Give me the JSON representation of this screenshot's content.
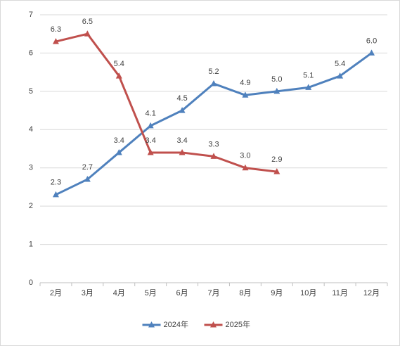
{
  "chart_data": {
    "type": "line",
    "categories": [
      "2月",
      "3月",
      "4月",
      "5月",
      "6月",
      "7月",
      "8月",
      "9月",
      "10月",
      "11月",
      "12月"
    ],
    "series": [
      {
        "name": "2024年",
        "color": "#4f81bd",
        "values": [
          2.3,
          2.7,
          3.4,
          4.1,
          4.5,
          5.2,
          4.9,
          5.0,
          5.1,
          5.4,
          6.0
        ],
        "value_labels": [
          "2.3",
          "2.7",
          "3.4",
          "4.1",
          "4.5",
          "5.2",
          "4.9",
          "5.0",
          "5.1",
          "5.4",
          "6.0"
        ]
      },
      {
        "name": "2025年",
        "color": "#c0504d",
        "values": [
          6.3,
          6.5,
          5.4,
          3.4,
          3.4,
          3.3,
          3.0,
          2.9,
          null,
          null,
          null
        ],
        "value_labels": [
          "6.3",
          "6.5",
          "5.4",
          "3.4",
          "3.4",
          "3.3",
          "3.0",
          "2.9",
          null,
          null,
          null
        ]
      }
    ],
    "ylim": [
      0,
      7
    ],
    "yticks": [
      0,
      1,
      2,
      3,
      4,
      5,
      6,
      7
    ],
    "grid": true,
    "legend": "bottom"
  }
}
